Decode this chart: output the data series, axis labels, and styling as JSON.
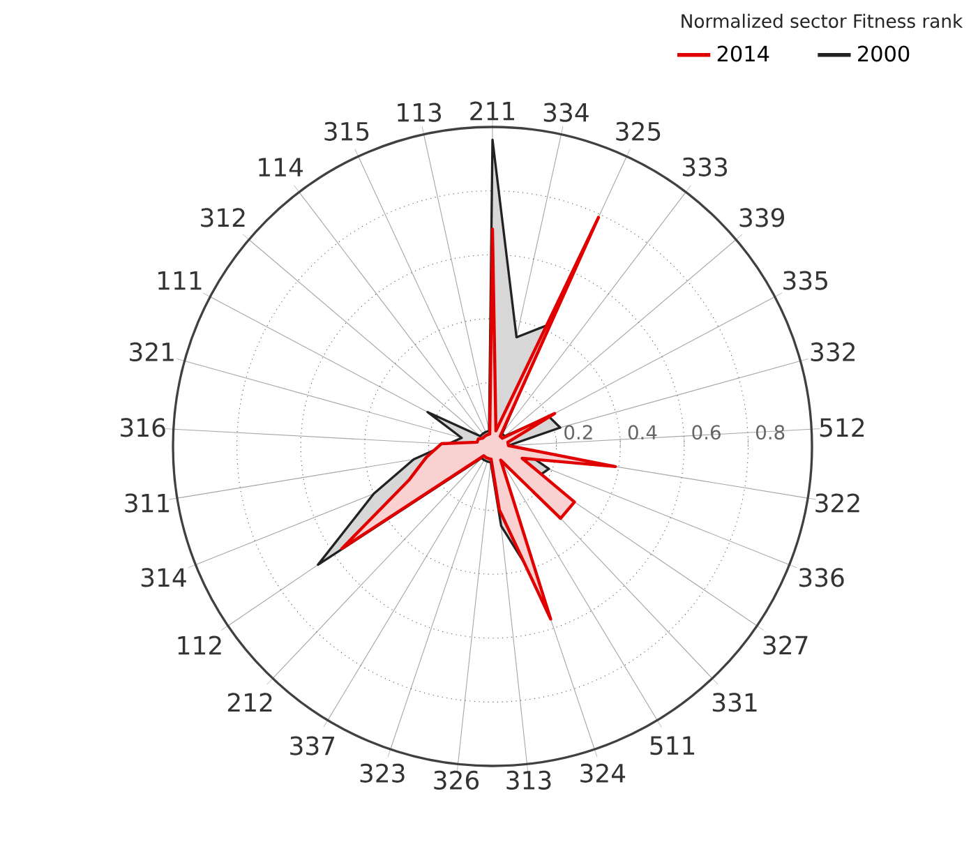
{
  "chart_data": {
    "type": "radar",
    "legend_title": "Normalized sector Fitness rank",
    "categories": [
      "211",
      "334",
      "325",
      "333",
      "339",
      "335",
      "332",
      "512",
      "322",
      "336",
      "327",
      "331",
      "511",
      "324",
      "313",
      "326",
      "323",
      "337",
      "212",
      "112",
      "314",
      "311",
      "316",
      "321",
      "111",
      "312",
      "114",
      "315",
      "113"
    ],
    "series": [
      {
        "name": "2014",
        "color": "#e00000",
        "values": [
          0.68,
          0.05,
          0.79,
          0.04,
          0.04,
          0.22,
          0.05,
          0.05,
          0.39,
          0.1,
          0.31,
          0.31,
          0.05,
          0.57,
          0.2,
          0.04,
          0.04,
          0.04,
          0.04,
          0.57,
          0.28,
          0.21,
          0.16,
          0.05,
          0.05,
          0.04,
          0.04,
          0.04,
          0.04
        ]
      },
      {
        "name": "2000",
        "color": "#222222",
        "values": [
          0.96,
          0.35,
          0.42,
          0.05,
          0.05,
          0.2,
          0.22,
          0.05,
          0.1,
          0.19,
          0.17,
          0.23,
          0.05,
          0.47,
          0.25,
          0.05,
          0.05,
          0.05,
          0.05,
          0.66,
          0.4,
          0.25,
          0.14,
          0.1,
          0.23,
          0.05,
          0.05,
          0.05,
          0.05
        ]
      }
    ],
    "ylim": [
      0,
      1
    ],
    "yticks": [
      0.2,
      0.4,
      0.6,
      0.8
    ],
    "grid": true,
    "legend": "top right"
  }
}
